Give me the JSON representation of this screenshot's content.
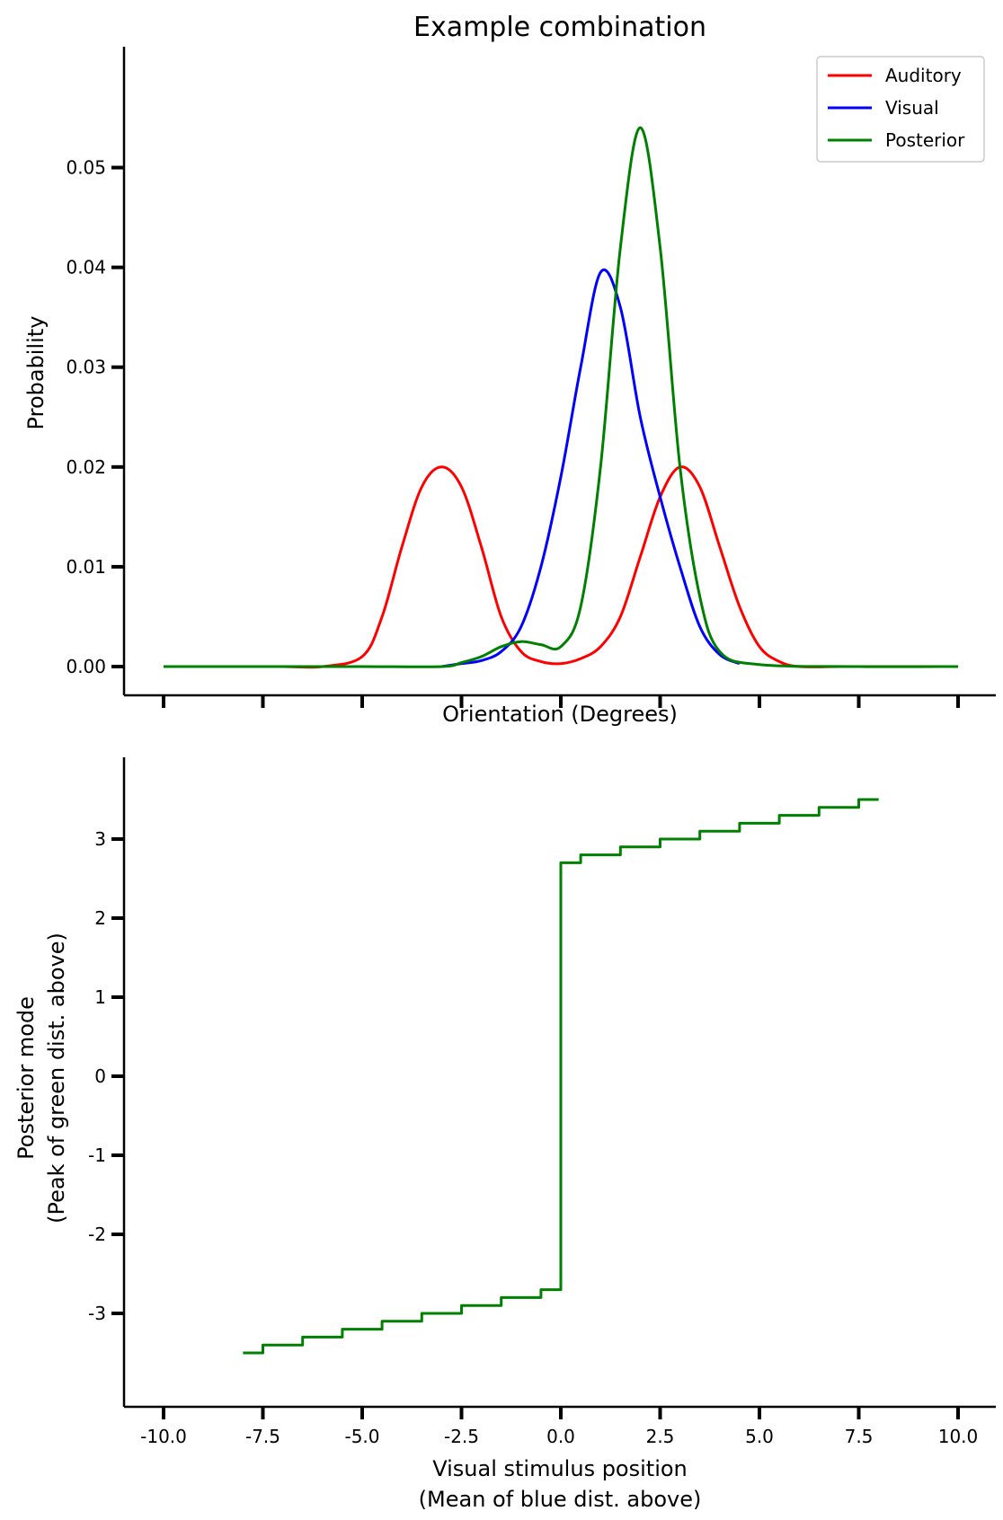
{
  "chart_data": [
    {
      "type": "line",
      "title": "Example combination",
      "xlabel": "Orientation (Degrees)",
      "ylabel": "Probability",
      "xlim": [
        -10.0,
        10.0
      ],
      "ylim": [
        0.0,
        0.055
      ],
      "yticks": [
        "0.00",
        "0.01",
        "0.02",
        "0.03",
        "0.04",
        "0.05"
      ],
      "x_tick_labels_shown": false,
      "grid": false,
      "legend": "top-right",
      "series": [
        {
          "name": "Auditory",
          "color": "#ff0000",
          "x": [
            -10,
            -9,
            -8,
            -7,
            -6,
            -5,
            -4.5,
            -4,
            -3.5,
            -3,
            -2.5,
            -2,
            -1.5,
            -1,
            -0.5,
            0,
            0.5,
            1,
            1.5,
            2,
            2.5,
            3,
            3.5,
            4,
            4.5,
            5,
            5.5,
            6,
            7,
            8,
            9,
            10
          ],
          "values": [
            0,
            0,
            0,
            0,
            0,
            0.001,
            0.005,
            0.012,
            0.018,
            0.02,
            0.018,
            0.012,
            0.005,
            0.0015,
            0.0005,
            0.0003,
            0.0008,
            0.002,
            0.005,
            0.011,
            0.017,
            0.02,
            0.018,
            0.012,
            0.006,
            0.002,
            0.0005,
            0,
            0,
            0,
            0,
            0
          ]
        },
        {
          "name": "Visual",
          "color": "#0000ff",
          "x": [
            -10,
            -5,
            -3,
            -2.5,
            -2,
            -1.5,
            -1,
            -0.5,
            0,
            0.5,
            1,
            1.5,
            2,
            2.5,
            3,
            3.5,
            4,
            4.5,
            5,
            6,
            10
          ],
          "values": [
            0,
            0,
            0,
            0.0003,
            0.0006,
            0.0015,
            0.004,
            0.01,
            0.019,
            0.03,
            0.0395,
            0.036,
            0.025,
            0.017,
            0.01,
            0.004,
            0.0012,
            0.0003,
            0,
            0,
            0
          ],
          "line_ends_at_x": 4.5
        },
        {
          "name": "Posterior",
          "color": "#008000",
          "x": [
            -10,
            -7.5,
            -5,
            -3,
            -2.5,
            -2,
            -1.5,
            -1,
            -0.5,
            0,
            0.5,
            1,
            1.5,
            2,
            2.5,
            3,
            3.5,
            4,
            5,
            7.5,
            10
          ],
          "values": [
            0,
            0,
            0,
            0,
            0.0004,
            0.001,
            0.002,
            0.0025,
            0.0022,
            0.002,
            0.006,
            0.02,
            0.042,
            0.054,
            0.042,
            0.02,
            0.007,
            0.0015,
            0.0002,
            0,
            0
          ]
        }
      ]
    },
    {
      "type": "line",
      "title": "",
      "xlabel": "Visual stimulus position\n(Mean of blue dist. above)",
      "ylabel": "Posterior mode\n(Peak of green dist. above)",
      "xlim": [
        -10.0,
        10.0
      ],
      "ylim": [
        -3.75,
        3.75
      ],
      "xticks": [
        "-10.0",
        "-7.5",
        "-5.0",
        "-2.5",
        "0.0",
        "2.5",
        "5.0",
        "7.5",
        "10.0"
      ],
      "yticks": [
        "-3",
        "-2",
        "-1",
        "0",
        "1",
        "2",
        "3"
      ],
      "grid": false,
      "series": [
        {
          "color": "#008000",
          "x": [
            -8.0,
            -7.5,
            -7.0,
            -6.5,
            -6.0,
            -5.5,
            -5.0,
            -4.5,
            -4.0,
            -3.5,
            -3.0,
            -2.5,
            -2.0,
            -1.5,
            -1.0,
            -0.5,
            0.0,
            0.5,
            1.0,
            1.5,
            2.0,
            2.5,
            3.0,
            3.5,
            4.0,
            4.5,
            5.0,
            5.5,
            6.0,
            6.5,
            7.0,
            7.5,
            8.0
          ],
          "values": [
            -3.5,
            -3.4,
            -3.4,
            -3.3,
            -3.3,
            -3.2,
            -3.2,
            -3.1,
            -3.1,
            -3.0,
            -3.0,
            -2.9,
            -2.9,
            -2.8,
            -2.8,
            -2.7,
            2.7,
            2.8,
            2.8,
            2.9,
            2.9,
            3.0,
            3.0,
            3.1,
            3.1,
            3.2,
            3.2,
            3.3,
            3.3,
            3.4,
            3.4,
            3.5,
            3.5
          ],
          "step": true
        }
      ]
    }
  ]
}
